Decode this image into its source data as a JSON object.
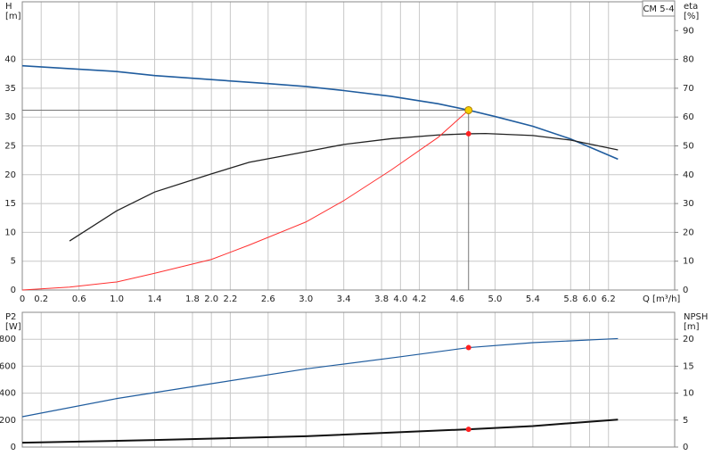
{
  "chart_data": [
    {
      "type": "line",
      "title": "CM 5-4",
      "ylabel": "H",
      "yunit": "[m]",
      "y2label": "eta",
      "y2unit": "[%]",
      "xlabel": "Q [m³/h]",
      "xlim": [
        0,
        6.9
      ],
      "ylim": [
        0,
        50
      ],
      "y2lim": [
        0,
        100
      ],
      "grid": true,
      "xticks": [
        0,
        0.2,
        0.6,
        {
          "value": 1,
          "label": "1.0"
        },
        1.4,
        1.8,
        {
          "value": 2,
          "label": "2.0"
        },
        2.2,
        2.6,
        {
          "value": 3,
          "label": "3.0"
        },
        3.4,
        3.8,
        {
          "value": 4,
          "label": "4.0"
        },
        4.2,
        4.6,
        {
          "value": 5,
          "label": "5.0"
        },
        5.4,
        5.8,
        {
          "value": 6,
          "label": "6.0"
        },
        6.2
      ],
      "yticks": [
        0,
        5,
        10,
        15,
        20,
        25,
        30,
        35,
        40
      ],
      "y2ticks": [
        0,
        10,
        20,
        30,
        40,
        50,
        60,
        70,
        80,
        90
      ],
      "series": [
        {
          "color": "#1f5c9e",
          "width": 1.6,
          "x": [
            0,
            0.5,
            1.0,
            1.4,
            2.0,
            2.6,
            3.0,
            3.4,
            3.9,
            4.4,
            4.72,
            5.0,
            5.4,
            5.8,
            6.3
          ],
          "values": [
            38.9,
            38.4,
            37.9,
            37.2,
            36.5,
            35.8,
            35.3,
            34.6,
            33.6,
            32.3,
            31.2,
            30.1,
            28.4,
            26.2,
            22.7
          ]
        },
        {
          "color": "#222222",
          "width": 1.3,
          "axis": "y2",
          "x": [
            0.5,
            1.0,
            1.4,
            2.0,
            2.4,
            3.0,
            3.4,
            3.9,
            4.4,
            4.72,
            4.9,
            5.4,
            5.8,
            6.3
          ],
          "values": [
            17,
            27.5,
            34,
            40.3,
            44.3,
            48,
            50.5,
            52.5,
            53.8,
            54.2,
            54.3,
            53.6,
            52,
            48.6
          ]
        },
        {
          "color": "#ff3030",
          "width": 1,
          "x": [
            0,
            0.5,
            1.0,
            1.4,
            2.0,
            2.4,
            3.0,
            3.4,
            3.9,
            4.4,
            4.72
          ],
          "values": [
            0,
            0.5,
            1.4,
            2.9,
            5.3,
            7.8,
            11.8,
            15.5,
            20.8,
            26.5,
            31.2
          ]
        }
      ],
      "points": [
        {
          "x": 4.72,
          "value": 31.2,
          "color": "#f5d000"
        },
        {
          "x": 4.72,
          "value": 54.2,
          "axis": "y2",
          "color": "#ff2020"
        }
      ]
    },
    {
      "type": "line",
      "ylabel": "P2",
      "yunit": "[W]",
      "y2label": "NPSH",
      "y2unit": "[m]",
      "xlim": [
        0,
        6.9
      ],
      "ylim": [
        0,
        1000
      ],
      "y2lim": [
        0,
        25
      ],
      "grid": true,
      "yticks": [
        0,
        200,
        400,
        600,
        800
      ],
      "y2ticks": [
        0,
        5,
        10,
        15,
        20
      ],
      "series": [
        {
          "color": "#1f5c9e",
          "width": 1.2,
          "x": [
            0,
            1.0,
            2.0,
            3.0,
            4.0,
            4.72,
            5.4,
            6.3
          ],
          "values": [
            225,
            360,
            470,
            580,
            670,
            738,
            775,
            805
          ]
        },
        {
          "color": "#111111",
          "width": 2,
          "axis": "y2",
          "x": [
            0,
            1.4,
            3.0,
            4.72,
            5.4,
            6.3
          ],
          "values": [
            0.8,
            1.3,
            2.0,
            3.3,
            3.9,
            5.1
          ]
        }
      ],
      "points": [
        {
          "x": 4.72,
          "value": 738,
          "color": "#ff2020"
        },
        {
          "x": 4.72,
          "value": 3.3,
          "axis": "y2",
          "color": "#ff2020"
        }
      ]
    }
  ]
}
